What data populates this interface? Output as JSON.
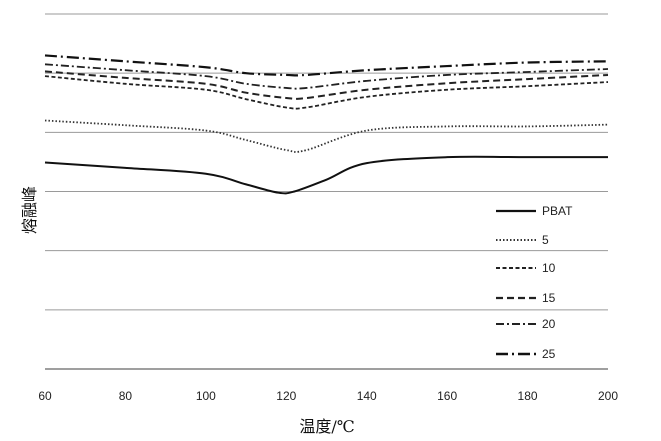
{
  "chart_data": {
    "type": "line",
    "title": "",
    "xlabel": "温度/℃",
    "ylabel": "熔融峰",
    "xlim": [
      60,
      200
    ],
    "xticks": [
      60,
      80,
      100,
      120,
      140,
      160,
      180,
      200
    ],
    "ylim": [
      0,
      6
    ],
    "gridlines_y": [
      0,
      1,
      2,
      3,
      4,
      5,
      6
    ],
    "grid": true,
    "legend": "bottom-right",
    "series": [
      {
        "name": "PBAT",
        "dash": "solid",
        "color": "#111111",
        "points": [
          [
            60,
            3.49
          ],
          [
            80,
            3.4
          ],
          [
            100,
            3.3
          ],
          [
            110,
            3.12
          ],
          [
            118,
            2.98
          ],
          [
            122,
            3.0
          ],
          [
            130,
            3.2
          ],
          [
            140,
            3.48
          ],
          [
            160,
            3.58
          ],
          [
            180,
            3.58
          ],
          [
            200,
            3.58
          ]
        ]
      },
      {
        "name": "5",
        "dash": "dotted",
        "color": "#333333",
        "points": [
          [
            60,
            4.2
          ],
          [
            80,
            4.12
          ],
          [
            100,
            4.03
          ],
          [
            110,
            3.87
          ],
          [
            120,
            3.7
          ],
          [
            125,
            3.7
          ],
          [
            140,
            4.03
          ],
          [
            160,
            4.1
          ],
          [
            180,
            4.1
          ],
          [
            200,
            4.13
          ]
        ]
      },
      {
        "name": "10",
        "dash": "short-dash",
        "color": "#222222",
        "points": [
          [
            60,
            4.95
          ],
          [
            80,
            4.82
          ],
          [
            100,
            4.72
          ],
          [
            110,
            4.56
          ],
          [
            120,
            4.42
          ],
          [
            125,
            4.42
          ],
          [
            140,
            4.6
          ],
          [
            160,
            4.72
          ],
          [
            180,
            4.78
          ],
          [
            200,
            4.85
          ]
        ]
      },
      {
        "name": "15",
        "dash": "long-dash",
        "color": "#222222",
        "points": [
          [
            60,
            5.03
          ],
          [
            80,
            4.92
          ],
          [
            100,
            4.82
          ],
          [
            110,
            4.67
          ],
          [
            120,
            4.58
          ],
          [
            125,
            4.58
          ],
          [
            140,
            4.72
          ],
          [
            160,
            4.83
          ],
          [
            180,
            4.9
          ],
          [
            200,
            4.97
          ]
        ]
      },
      {
        "name": "20",
        "dash": "dash-dot",
        "color": "#222222",
        "points": [
          [
            60,
            5.15
          ],
          [
            80,
            5.05
          ],
          [
            100,
            4.95
          ],
          [
            110,
            4.82
          ],
          [
            120,
            4.75
          ],
          [
            125,
            4.75
          ],
          [
            140,
            4.87
          ],
          [
            160,
            4.97
          ],
          [
            180,
            5.02
          ],
          [
            200,
            5.07
          ]
        ]
      },
      {
        "name": "25",
        "dash": "long-dash-dot",
        "color": "#111111",
        "points": [
          [
            60,
            5.3
          ],
          [
            80,
            5.2
          ],
          [
            100,
            5.1
          ],
          [
            110,
            5.0
          ],
          [
            120,
            4.97
          ],
          [
            125,
            4.97
          ],
          [
            140,
            5.05
          ],
          [
            160,
            5.12
          ],
          [
            180,
            5.18
          ],
          [
            200,
            5.2
          ]
        ]
      }
    ]
  }
}
